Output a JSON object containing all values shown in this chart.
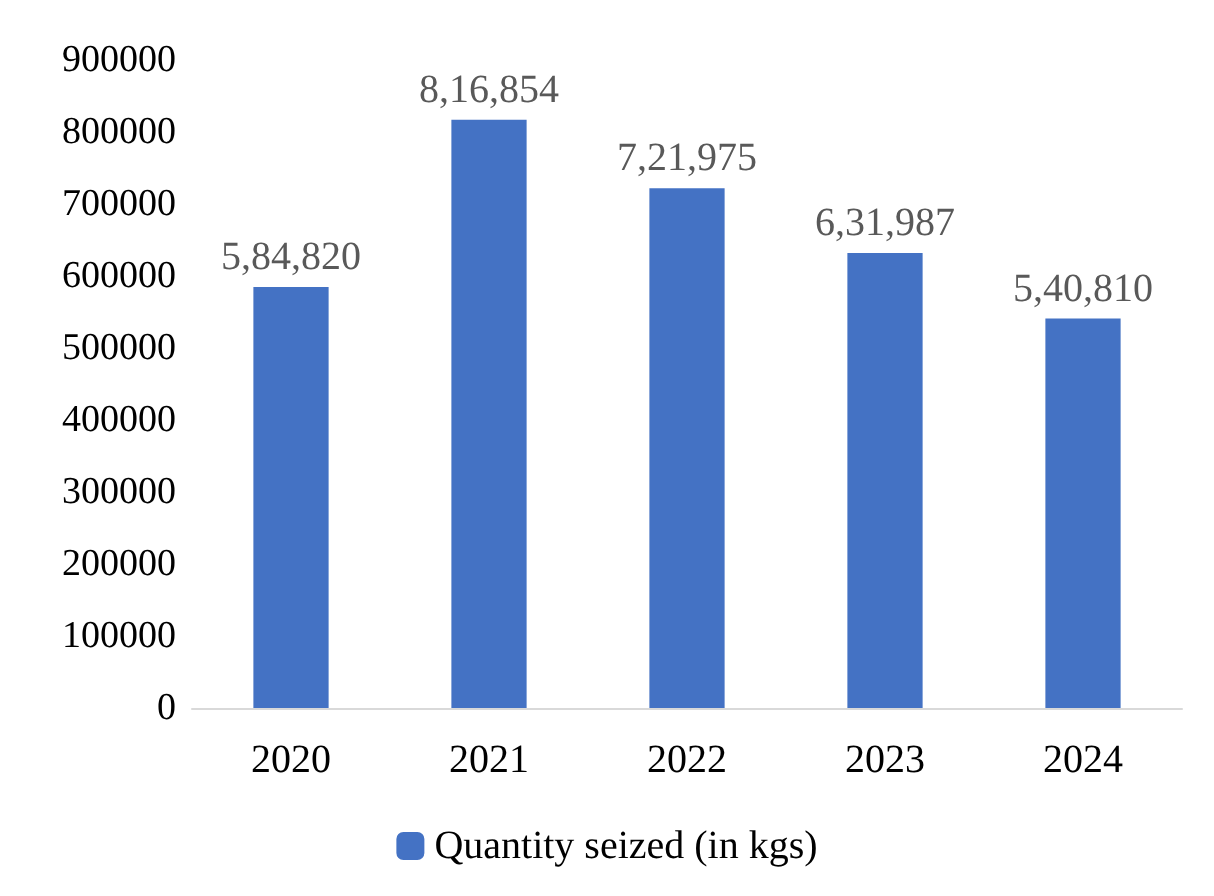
{
  "chart_data": {
    "type": "bar",
    "categories": [
      "2020",
      "2021",
      "2022",
      "2023",
      "2024"
    ],
    "series": [
      {
        "name": "Quantity seized (in kgs)",
        "color": "#4472c4",
        "values": [
          584820,
          816854,
          721975,
          631987,
          540810
        ],
        "value_labels": [
          "5,84,820",
          "8,16,854",
          "7,21,975",
          "6,31,987",
          "5,40,810"
        ]
      }
    ],
    "ylim": [
      0,
      900000
    ],
    "yticks": [
      0,
      100000,
      200000,
      300000,
      400000,
      500000,
      600000,
      700000,
      800000,
      900000
    ],
    "grid": false,
    "legend": "bottom"
  }
}
